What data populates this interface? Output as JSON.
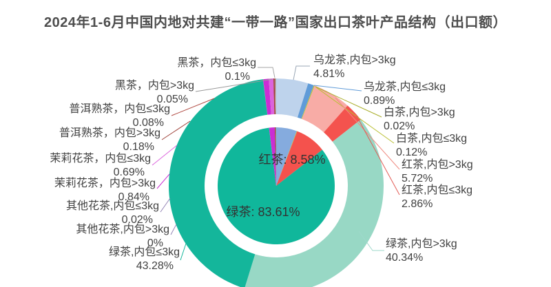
{
  "title": "2024年1-6月中国内地对共建“一带一路”国家出口茶叶产品结构（出口额）",
  "chart_data": {
    "type": "pie",
    "subtype": "two-level-donut",
    "title": "2024年1-6月中国内地对共建“一带一路”国家出口茶叶产品结构（出口额）",
    "units": "%",
    "legend": "none",
    "grid": "off",
    "outer_ring": {
      "name": "细分产品(出口额占比)",
      "clockwise_from_top": true,
      "slices": [
        {
          "label": "乌龙茶,内包>3kg",
          "value": 4.81,
          "display_value": "4.81%",
          "color": "#bed3ec"
        },
        {
          "label": "乌龙茶,内包≤3kg",
          "value": 0.89,
          "display_value": "0.89%",
          "color": "#5f9bd8"
        },
        {
          "label": "白茶,内包>3kg",
          "value": 0.02,
          "display_value": "0.02%",
          "color": "#a8ad28"
        },
        {
          "label": "白茶,内包≤3kg",
          "value": 0.12,
          "display_value": "0.12%",
          "color": "#b9bf33"
        },
        {
          "label": "红茶,内包>3kg",
          "value": 5.72,
          "display_value": "5.72%",
          "color": "#f8aca6"
        },
        {
          "label": "红茶,内包≤3kg",
          "value": 2.86,
          "display_value": "2.86%",
          "color": "#f4534e"
        },
        {
          "label": "绿茶,内包>3kg",
          "value": 40.34,
          "display_value": "40.34%",
          "color": "#98d8c5"
        },
        {
          "label": "绿茶,内包≤3kg",
          "value": 43.28,
          "display_value": "43.28%",
          "color": "#14b69b"
        },
        {
          "label": "其他花茶,内包>3kg",
          "value": 0,
          "display_value": "0%",
          "color": "#9283b5"
        },
        {
          "label": "其他花茶,内包≤3kg",
          "value": 0.02,
          "display_value": "0.02%",
          "color": "#9283b5"
        },
        {
          "label": "茉莉花茶，内包>3kg",
          "value": 0.84,
          "display_value": "0.84%",
          "color": "#ca2dd4"
        },
        {
          "label": "茉莉花茶，内包≤3kg",
          "value": 0.69,
          "display_value": "0.69%",
          "color": "#dc64dd"
        },
        {
          "label": "普洱熟茶，内包>3kg",
          "value": 0.18,
          "display_value": "0.18%",
          "color": "#9e4038"
        },
        {
          "label": "普洱熟茶，内包≤3kg",
          "value": 0.08,
          "display_value": "0.08%",
          "color": "#b04a42"
        },
        {
          "label": "黑茶，内包>3kg",
          "value": 0.05,
          "display_value": "0.05%",
          "color": "#8c8c8c"
        },
        {
          "label": "黑茶，内包≤3kg",
          "value": 0.1,
          "display_value": "0.1%",
          "color": "#b3b3b3"
        }
      ]
    },
    "inner_ring": {
      "name": "茶类(出口额占比)",
      "clockwise_from_top": true,
      "slices": [
        {
          "label": "乌龙茶",
          "value": 5.7,
          "color": "#85abde"
        },
        {
          "label": "白茶",
          "value": 0.14,
          "color": "#b9bf33"
        },
        {
          "label": "红茶",
          "value": 8.58,
          "color": "#f4524d"
        },
        {
          "label": "绿茶",
          "value": 83.61,
          "color": "#10b79b"
        },
        {
          "label": "其他花茶",
          "value": 0.02,
          "color": "#9283b5"
        },
        {
          "label": "茉莉花茶",
          "value": 1.53,
          "color": "#ca2dd4"
        },
        {
          "label": "普洱熟茶",
          "value": 0.26,
          "color": "#9e4038"
        },
        {
          "label": "黑茶",
          "value": 0.15,
          "color": "#8c8c8c"
        }
      ],
      "visible_labels": [
        "红茶: 8.58%",
        "绿茶: 83.61%"
      ]
    }
  }
}
